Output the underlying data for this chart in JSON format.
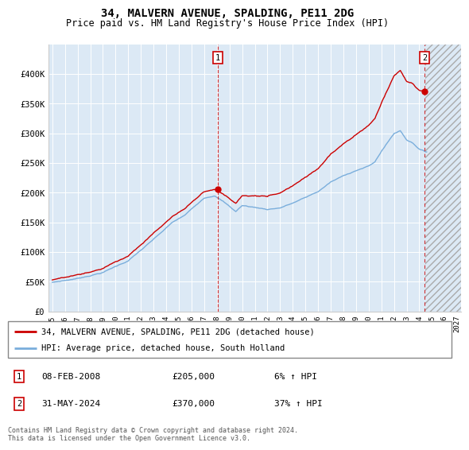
{
  "title": "34, MALVERN AVENUE, SPALDING, PE11 2DG",
  "subtitle": "Price paid vs. HM Land Registry's House Price Index (HPI)",
  "hpi_label": "HPI: Average price, detached house, South Holland",
  "property_label": "34, MALVERN AVENUE, SPALDING, PE11 2DG (detached house)",
  "annotation1": {
    "label": "1",
    "date": "08-FEB-2008",
    "price": 205000,
    "hpi_pct": "6% ↑ HPI"
  },
  "annotation2": {
    "label": "2",
    "date": "31-MAY-2024",
    "price": 370000,
    "hpi_pct": "37% ↑ HPI"
  },
  "footer": "Contains HM Land Registry data © Crown copyright and database right 2024.\nThis data is licensed under the Open Government Licence v3.0.",
  "hpi_color": "#7aaedc",
  "price_color": "#cc0000",
  "bg_color": "#dce9f5",
  "ylim": [
    0,
    450000
  ],
  "yticks": [
    0,
    50000,
    100000,
    150000,
    200000,
    250000,
    300000,
    350000,
    400000
  ],
  "ytick_labels": [
    "£0",
    "£50K",
    "£100K",
    "£150K",
    "£200K",
    "£250K",
    "£300K",
    "£350K",
    "£400K"
  ],
  "sale1_x": 2008.083,
  "sale1_y": 205000,
  "sale2_x": 2024.417,
  "sale2_y": 370000,
  "future_start": 2024.5,
  "xlim_left": 1994.7,
  "xlim_right": 2027.3
}
